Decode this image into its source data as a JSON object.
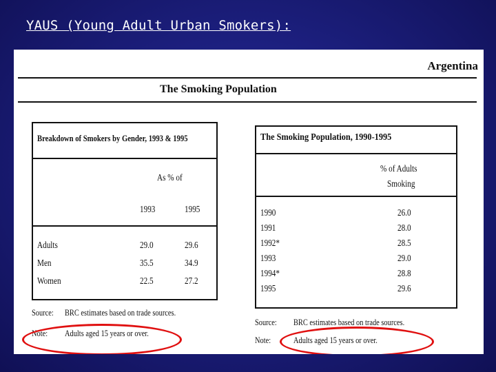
{
  "slide": {
    "title": "YAUS (Young Adult Urban Smokers):"
  },
  "document": {
    "country": "Argentina",
    "section_title": "The Smoking Population",
    "gender_table": {
      "title": "Breakdown of Smokers by Gender, 1993 & 1995",
      "unit_header": "As % of",
      "years": [
        "1993",
        "1995"
      ],
      "rows": [
        {
          "label": "Adults",
          "values": [
            "29.0",
            "29.6"
          ]
        },
        {
          "label": "Men",
          "values": [
            "35.5",
            "34.9"
          ]
        },
        {
          "label": "Women",
          "values": [
            "22.5",
            "27.2"
          ]
        }
      ],
      "source_label": "Source:",
      "source_text": "BRC estimates based on trade sources.",
      "note_label": "Note:",
      "note_text": "Adults aged 15 years or over."
    },
    "trend_table": {
      "title": "The Smoking Population, 1990-1995",
      "col_header_line1": "% of Adults",
      "col_header_line2": "Smoking",
      "rows": [
        {
          "year": "1990",
          "value": "26.0"
        },
        {
          "year": "1991",
          "value": "28.0"
        },
        {
          "year": "1992*",
          "value": "28.5"
        },
        {
          "year": "1993",
          "value": "29.0"
        },
        {
          "year": "1994*",
          "value": "28.8"
        },
        {
          "year": "1995",
          "value": "29.6"
        }
      ],
      "source_label": "Source:",
      "source_text": "BRC estimates based on trade sources.",
      "note_label": "Note:",
      "note_text": "Adults aged 15 years or over."
    },
    "highlight_color": "#e01010"
  }
}
